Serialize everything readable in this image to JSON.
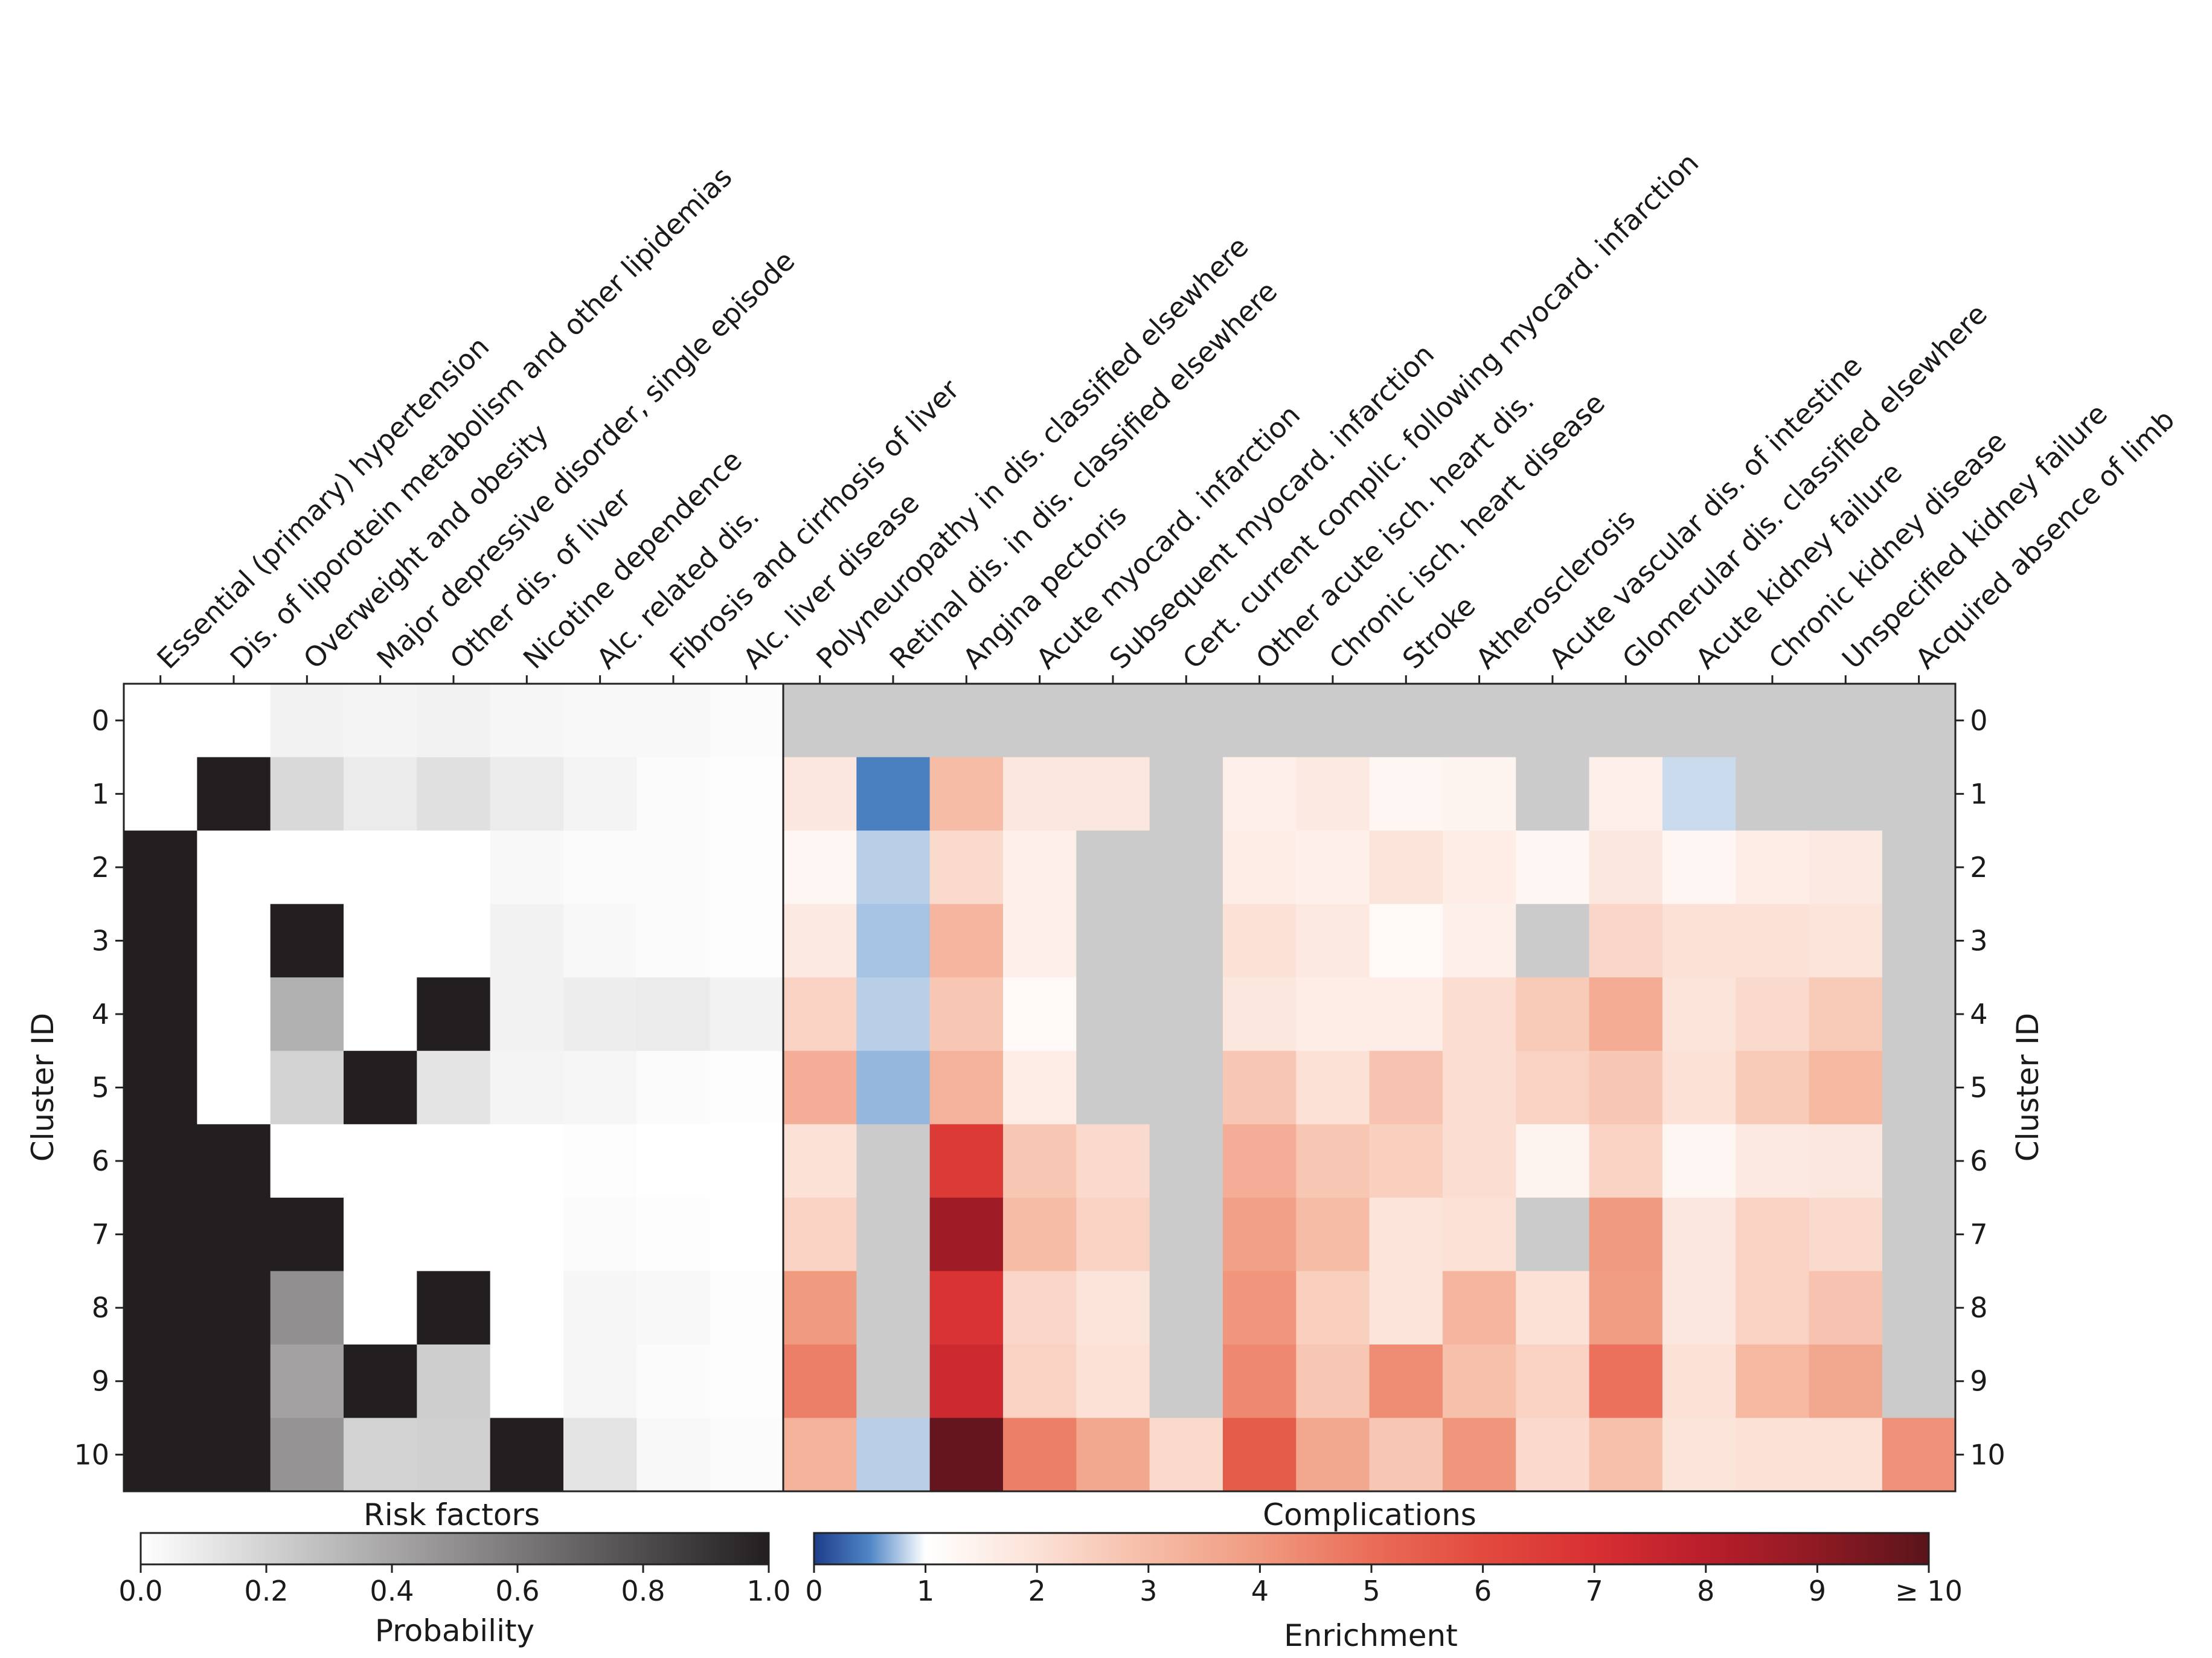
{
  "chart_data": {
    "type": "heatmap",
    "ylabel": "Cluster ID",
    "rows": [
      "0",
      "1",
      "2",
      "3",
      "4",
      "5",
      "6",
      "7",
      "8",
      "9",
      "10"
    ],
    "risk_factors": {
      "title": "Risk factors",
      "columns": [
        "Essential (primary) hypertension",
        "Dis. of liporotein metabolism and other lipidemias",
        "Overweight and obesity",
        "Major depressive disorder, single episode",
        "Other dis. of liver",
        "Nicotine dependence",
        "Alc. related dis.",
        "Fibrosis and cirrhosis of liver",
        "Alc. liver disease"
      ],
      "values": [
        [
          0.0,
          0.0,
          0.06,
          0.05,
          0.06,
          0.04,
          0.03,
          0.03,
          0.02
        ],
        [
          0.0,
          1.0,
          0.17,
          0.09,
          0.14,
          0.09,
          0.05,
          0.02,
          0.01
        ],
        [
          1.0,
          0.0,
          0.0,
          0.0,
          0.0,
          0.03,
          0.02,
          0.02,
          0.01
        ],
        [
          1.0,
          0.0,
          1.0,
          0.0,
          0.0,
          0.06,
          0.03,
          0.02,
          0.01
        ],
        [
          1.0,
          0.0,
          0.35,
          0.0,
          1.0,
          0.06,
          0.08,
          0.09,
          0.06
        ],
        [
          1.0,
          0.0,
          0.2,
          1.0,
          0.12,
          0.05,
          0.04,
          0.02,
          0.01
        ],
        [
          1.0,
          1.0,
          0.0,
          0.0,
          0.0,
          0.0,
          0.01,
          0.0,
          0.0
        ],
        [
          1.0,
          1.0,
          1.0,
          0.0,
          0.0,
          0.0,
          0.02,
          0.01,
          0.0
        ],
        [
          1.0,
          1.0,
          0.5,
          0.0,
          1.0,
          0.0,
          0.04,
          0.03,
          0.01
        ],
        [
          1.0,
          1.0,
          0.42,
          1.0,
          0.22,
          0.0,
          0.04,
          0.02,
          0.01
        ],
        [
          1.0,
          1.0,
          0.48,
          0.2,
          0.21,
          1.0,
          0.12,
          0.03,
          0.02
        ]
      ],
      "colorbar": {
        "label": "Probability",
        "range": [
          0.0,
          1.0
        ],
        "ticks": [
          "0.0",
          "0.2",
          "0.4",
          "0.6",
          "0.8",
          "1.0"
        ]
      }
    },
    "complications": {
      "title": "Complications",
      "columns": [
        "Polyneuropathy in dis. classified elsewhere",
        "Retinal dis. in dis. classified elsewhere",
        "Angina pectoris",
        "Acute myocard. infarction",
        "Subsequent myocard. infarction",
        "Cert. current complic. following myocard. infarction",
        "Other acute isch. heart dis.",
        "Chronic isch. heart disease",
        "Stroke",
        "Atherosclerosis",
        "Acute vascular dis. of intestine",
        "Glomerular dis. classified elsewhere",
        "Acute kidney failure",
        "Chronic kidney disease",
        "Unspecified kidney failure",
        "Acquired absence of limb"
      ],
      "values": [
        [
          null,
          null,
          null,
          null,
          null,
          null,
          null,
          null,
          null,
          null,
          null,
          null,
          null,
          null,
          null,
          null
        ],
        [
          1.8,
          0.45,
          3.0,
          1.8,
          1.8,
          null,
          1.5,
          1.7,
          1.3,
          1.4,
          null,
          1.5,
          0.85,
          null,
          null,
          null
        ],
        [
          1.3,
          0.8,
          2.2,
          1.5,
          null,
          null,
          1.6,
          1.5,
          1.9,
          1.6,
          1.3,
          1.8,
          1.3,
          1.6,
          1.7,
          null
        ],
        [
          1.7,
          0.75,
          3.2,
          1.5,
          null,
          null,
          2.0,
          1.7,
          1.2,
          1.5,
          null,
          2.3,
          2.0,
          2.0,
          1.9,
          null
        ],
        [
          2.4,
          0.8,
          2.7,
          1.2,
          null,
          null,
          1.8,
          1.6,
          1.6,
          2.1,
          2.6,
          3.5,
          1.9,
          2.2,
          2.6,
          null
        ],
        [
          3.4,
          0.7,
          3.3,
          1.6,
          null,
          null,
          2.7,
          2.0,
          2.8,
          2.1,
          2.4,
          2.7,
          2.0,
          2.6,
          3.1,
          null
        ],
        [
          2.0,
          null,
          6.6,
          2.7,
          2.2,
          null,
          3.4,
          2.7,
          2.5,
          2.1,
          1.4,
          2.4,
          1.3,
          1.7,
          1.8,
          null
        ],
        [
          2.4,
          null,
          8.6,
          3.0,
          2.4,
          null,
          3.8,
          3.0,
          1.9,
          2.0,
          null,
          4.0,
          1.8,
          2.4,
          2.2,
          null
        ],
        [
          4.0,
          null,
          6.9,
          2.3,
          1.9,
          null,
          4.1,
          2.5,
          1.9,
          3.2,
          2.0,
          3.9,
          1.8,
          2.4,
          2.8,
          null
        ],
        [
          4.6,
          null,
          7.4,
          2.4,
          2.0,
          null,
          4.4,
          2.7,
          4.3,
          2.9,
          2.4,
          4.9,
          2.0,
          3.1,
          3.6,
          null
        ],
        [
          3.3,
          0.8,
          9.8,
          4.6,
          3.6,
          2.2,
          5.5,
          3.6,
          2.7,
          4.1,
          2.2,
          2.9,
          1.9,
          2.0,
          2.0,
          4.2
        ]
      ],
      "missing_color": "#cbcbcb",
      "colorbar": {
        "label": "Enrichment",
        "range": [
          0,
          10
        ],
        "ticks": [
          "0",
          "1",
          "2",
          "3",
          "4",
          "5",
          "6",
          "7",
          "8",
          "9",
          "≥ 10"
        ]
      }
    },
    "grid": false
  }
}
